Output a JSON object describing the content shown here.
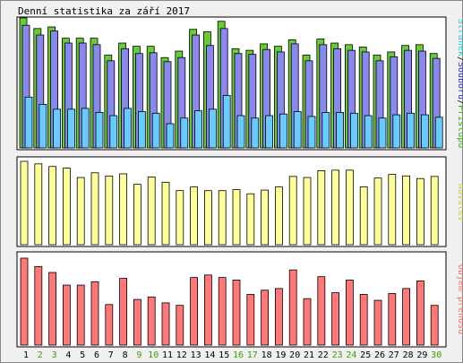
{
  "chart_data": [
    {
      "type": "bar",
      "title": "Denní statistika za září 2017",
      "ylabel": "16115",
      "legend": [
        "Stránek",
        "Souborů",
        "Přístupů"
      ],
      "legend_colors": [
        "#33cccc",
        "#3333cc",
        "#44aa22"
      ],
      "categories": [
        "1",
        "2",
        "3",
        "4",
        "5",
        "6",
        "7",
        "8",
        "9",
        "10",
        "11",
        "12",
        "13",
        "14",
        "15",
        "16",
        "17",
        "18",
        "19",
        "20",
        "21",
        "22",
        "23",
        "24",
        "25",
        "26",
        "27",
        "28",
        "29",
        "30"
      ],
      "ylim": [
        0,
        16115
      ],
      "series": [
        {
          "name": "Přístupů",
          "color": "#66cc33",
          "values": [
            16115,
            14800,
            15000,
            13600,
            13600,
            13600,
            11500,
            13000,
            12600,
            12600,
            11200,
            12000,
            14700,
            14400,
            15700,
            12300,
            12100,
            12900,
            12600,
            13400,
            11500,
            13500,
            13000,
            12800,
            12500,
            11500,
            11900,
            12700,
            12800,
            11700
          ]
        },
        {
          "name": "Souborů",
          "color": "#8888ee",
          "values": [
            15200,
            14000,
            14500,
            13000,
            13000,
            12800,
            10800,
            12300,
            11700,
            11800,
            10700,
            11200,
            14000,
            12700,
            14800,
            11700,
            11600,
            12200,
            11900,
            12900,
            10800,
            12800,
            12300,
            12100,
            11900,
            10800,
            11300,
            12100,
            12000,
            11100
          ]
        },
        {
          "name": "Stránek",
          "color": "#66ccff",
          "values": [
            6300,
            5400,
            4800,
            4800,
            4900,
            4400,
            4000,
            4900,
            4500,
            4300,
            3000,
            3700,
            4600,
            4800,
            6500,
            4000,
            3700,
            4000,
            4200,
            4500,
            3900,
            4400,
            4400,
            4300,
            4000,
            3700,
            4100,
            4300,
            4100,
            3800
          ]
        }
      ]
    },
    {
      "type": "bar",
      "ylabel": "1588",
      "legend": [
        "Návštěv"
      ],
      "legend_colors": [
        "#cccc55"
      ],
      "categories": [
        "1",
        "2",
        "3",
        "4",
        "5",
        "6",
        "7",
        "8",
        "9",
        "10",
        "11",
        "12",
        "13",
        "14",
        "15",
        "16",
        "17",
        "18",
        "19",
        "20",
        "21",
        "22",
        "23",
        "24",
        "25",
        "26",
        "27",
        "28",
        "29",
        "30"
      ],
      "ylim": [
        0,
        1588
      ],
      "series": [
        {
          "name": "Návštěv",
          "color": "#ffff99",
          "values": [
            1588,
            1540,
            1490,
            1460,
            1280,
            1370,
            1310,
            1350,
            1150,
            1290,
            1190,
            1030,
            1100,
            1030,
            1030,
            1050,
            970,
            1040,
            1100,
            1300,
            1280,
            1410,
            1420,
            1420,
            1100,
            1270,
            1340,
            1310,
            1260,
            1300
          ]
        }
      ]
    },
    {
      "type": "bar",
      "ylabel": "514763",
      "legend": [
        "Objem přenosu"
      ],
      "legend_colors": [
        "#ee7777"
      ],
      "categories": [
        "1",
        "2",
        "3",
        "4",
        "5",
        "6",
        "7",
        "8",
        "9",
        "10",
        "11",
        "12",
        "13",
        "14",
        "15",
        "16",
        "17",
        "18",
        "19",
        "20",
        "21",
        "22",
        "23",
        "24",
        "25",
        "26",
        "27",
        "28",
        "29",
        "30"
      ],
      "ylim": [
        0,
        514763
      ],
      "series": [
        {
          "name": "Objem přenosu",
          "color": "#ff7777",
          "values": [
            514763,
            465000,
            430000,
            355000,
            355000,
            375000,
            240000,
            395000,
            270000,
            285000,
            250000,
            235000,
            400000,
            415000,
            400000,
            385000,
            300000,
            325000,
            335000,
            445000,
            275000,
            405000,
            310000,
            385000,
            300000,
            265000,
            305000,
            335000,
            380000,
            235000
          ]
        }
      ]
    }
  ],
  "x_axis": {
    "labels": [
      "1",
      "2",
      "3",
      "4",
      "5",
      "6",
      "7",
      "8",
      "9",
      "10",
      "11",
      "12",
      "13",
      "14",
      "15",
      "16",
      "17",
      "18",
      "19",
      "20",
      "21",
      "22",
      "23",
      "24",
      "25",
      "26",
      "27",
      "28",
      "29",
      "30"
    ],
    "weekend": [
      2,
      3,
      9,
      10,
      16,
      17,
      23,
      24,
      30
    ],
    "weekday_color": "#000000",
    "weekend_color": "#449900"
  }
}
